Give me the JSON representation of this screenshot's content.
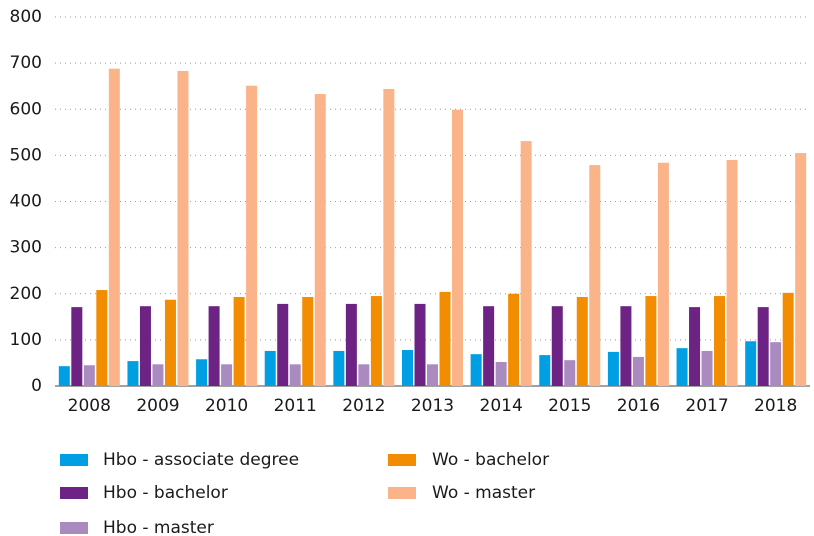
{
  "chart_data": {
    "type": "bar",
    "categories": [
      "2008",
      "2009",
      "2010",
      "2011",
      "2012",
      "2013",
      "2014",
      "2015",
      "2016",
      "2017",
      "2018"
    ],
    "series": [
      {
        "name": "Hbo - associate degree",
        "color": "#009fe3",
        "values": [
          43,
          54,
          58,
          76,
          76,
          78,
          69,
          67,
          74,
          82,
          97
        ]
      },
      {
        "name": "Hbo - bachelor",
        "color": "#6c2384",
        "values": [
          171,
          173,
          173,
          178,
          178,
          178,
          173,
          173,
          173,
          171,
          171
        ]
      },
      {
        "name": "Hbo - master",
        "color": "#a98bc0",
        "values": [
          45,
          47,
          47,
          47,
          47,
          47,
          52,
          56,
          63,
          76,
          95
        ]
      },
      {
        "name": "Wo - bachelor",
        "color": "#f28c00",
        "values": [
          208,
          187,
          193,
          193,
          195,
          204,
          200,
          193,
          195,
          195,
          202
        ]
      },
      {
        "name": "Wo - master",
        "color": "#fbb48a",
        "values": [
          688,
          683,
          651,
          633,
          644,
          599,
          531,
          479,
          484,
          490,
          505
        ]
      }
    ],
    "ylim": [
      0,
      800
    ],
    "yticks": [
      0,
      100,
      200,
      300,
      400,
      500,
      600,
      700,
      800
    ],
    "grid": true
  }
}
